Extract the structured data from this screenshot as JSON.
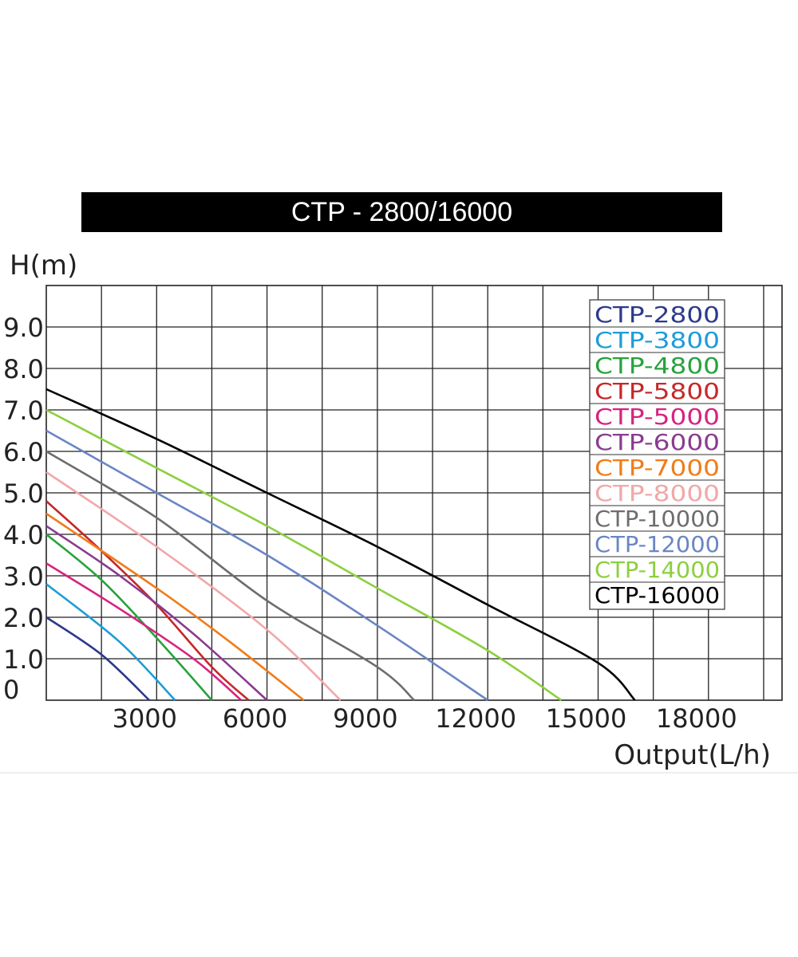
{
  "title": "CTP - 2800/16000",
  "chart_data": {
    "type": "line",
    "title": "CTP - 2800/16000",
    "xlabel": "Output(L/h)",
    "ylabel": "H(m)",
    "xlim": [
      0,
      20000
    ],
    "ylim": [
      0,
      10
    ],
    "x_ticks": [
      3000,
      6000,
      9000,
      12000,
      15000,
      18000
    ],
    "x_tick_labels": [
      "3000",
      "6000",
      "9000",
      "12000",
      "15000",
      "18000"
    ],
    "y_ticks": [
      0,
      1,
      2,
      3,
      4,
      5,
      6,
      7,
      8,
      9
    ],
    "y_tick_labels": [
      "0",
      "1.0",
      "2.0",
      "3.0",
      "4.0",
      "5.0",
      "6.0",
      "7.0",
      "8.0",
      "9.0"
    ],
    "grid": true,
    "legend_position": "top-right",
    "series": [
      {
        "name": "CTP-2800",
        "color": "#2b3a8c",
        "x": [
          0,
          1500,
          2800
        ],
        "y": [
          2.0,
          1.1,
          0
        ]
      },
      {
        "name": "CTP-3800",
        "color": "#1e9cd8",
        "x": [
          0,
          2000,
          3500
        ],
        "y": [
          2.8,
          1.4,
          0
        ]
      },
      {
        "name": "CTP-4800",
        "color": "#27a23c",
        "x": [
          0,
          1500,
          3000,
          4500
        ],
        "y": [
          4.0,
          2.9,
          1.5,
          0
        ]
      },
      {
        "name": "CTP-5800",
        "color": "#c62828",
        "x": [
          0,
          1500,
          3000,
          4500,
          5500
        ],
        "y": [
          4.8,
          3.6,
          2.3,
          0.8,
          0
        ]
      },
      {
        "name": "CTP-5000",
        "color": "#d6237f",
        "x": [
          0,
          2000,
          4000,
          5300
        ],
        "y": [
          3.3,
          2.2,
          1.0,
          0
        ]
      },
      {
        "name": "CTP-6000",
        "color": "#8a3b8f",
        "x": [
          0,
          2000,
          4000,
          6000
        ],
        "y": [
          4.2,
          3.0,
          1.6,
          0
        ]
      },
      {
        "name": "CTP-7000",
        "color": "#ef7d1a",
        "x": [
          0,
          3000,
          5000,
          7000
        ],
        "y": [
          4.5,
          2.7,
          1.4,
          0
        ]
      },
      {
        "name": "CTP-8000",
        "color": "#f2a7a7",
        "x": [
          0,
          3000,
          6000,
          8000
        ],
        "y": [
          5.5,
          3.7,
          1.7,
          0
        ]
      },
      {
        "name": "CTP-10000",
        "color": "#6d6d6d",
        "x": [
          0,
          3000,
          6000,
          9000,
          10000
        ],
        "y": [
          6.0,
          4.4,
          2.4,
          0.8,
          0
        ]
      },
      {
        "name": "CTP-12000",
        "color": "#6a86c4",
        "x": [
          0,
          3000,
          6000,
          9000,
          12000
        ],
        "y": [
          6.5,
          5.0,
          3.5,
          1.8,
          0
        ]
      },
      {
        "name": "CTP-14000",
        "color": "#8ccf3f",
        "x": [
          0,
          3000,
          6000,
          9000,
          12000,
          14000
        ],
        "y": [
          7.0,
          5.6,
          4.2,
          2.7,
          1.2,
          0
        ]
      },
      {
        "name": "CTP-16000",
        "color": "#000000",
        "x": [
          0,
          3000,
          6000,
          9000,
          12000,
          15000,
          16000
        ],
        "y": [
          7.5,
          6.3,
          5.0,
          3.7,
          2.3,
          0.9,
          0
        ]
      }
    ]
  }
}
